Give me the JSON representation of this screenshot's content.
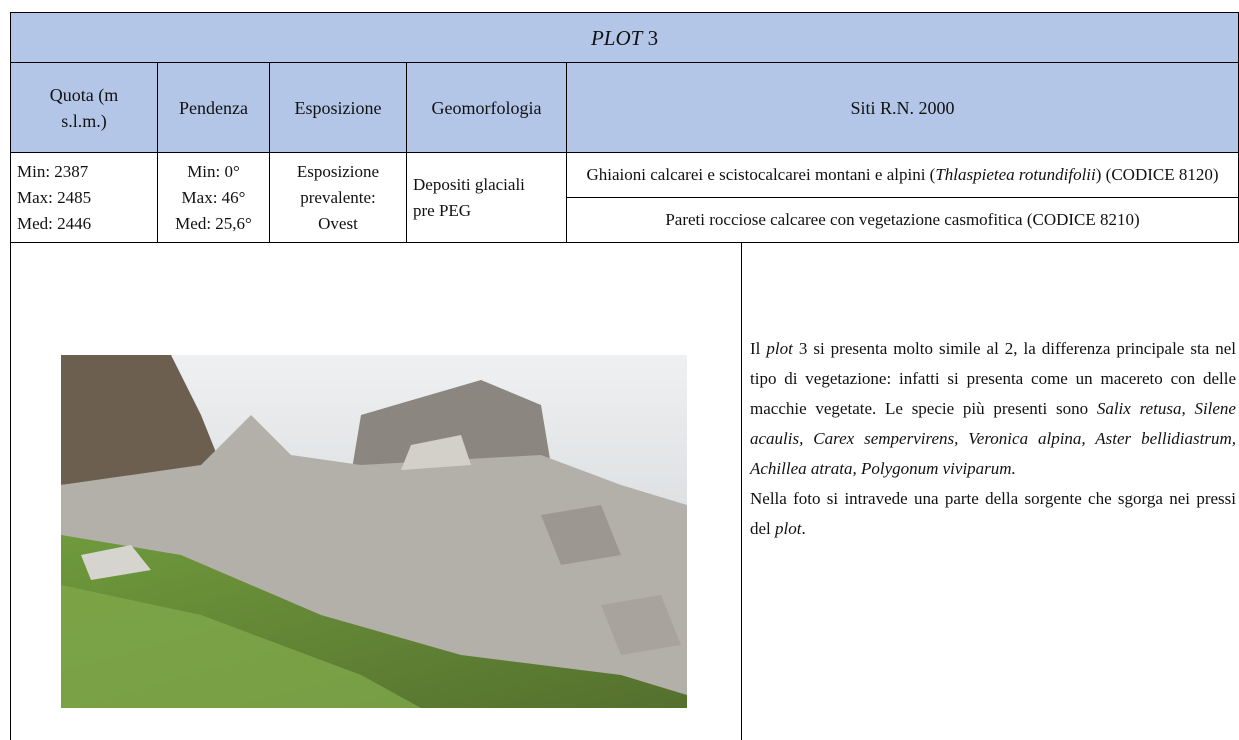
{
  "header": {
    "title": [
      "PLOT",
      " 3"
    ]
  },
  "table": {
    "columns": [
      [
        "Quota (m",
        "s.l.m.)"
      ],
      "Pendenza",
      "Esposizione",
      "Geomorfologia",
      "Siti R.N. 2000"
    ],
    "row": {
      "quota": [
        "Min: 2387",
        "Max: 2485",
        "Med: 2446"
      ],
      "pendenza": [
        "Min: 0°",
        "Max: 46°",
        "Med: 25,6°"
      ],
      "esposizione": [
        "Esposizione",
        "prevalente:",
        "Ovest"
      ],
      "geomorfologia": [
        "Depositi glaciali",
        "pre PEG"
      ],
      "siti": [
        [
          "Ghiaioni calcarei e scistocalcarei montani e alpini (",
          "Thlaspietea rotundifolii",
          ") (CODICE 8120)"
        ],
        [
          "Pareti rocciose calcaree con vegetazione casmofitica (CODICE 8210)"
        ]
      ]
    }
  },
  "description": {
    "paragraph1": [
      "Il ",
      "plot",
      " 3 si presenta molto simile al 2, la differenza principale sta nel tipo di vegetazione: infatti si presenta come un macereto con delle macchie vegetate. Le specie più presenti sono ",
      "Salix retusa, Silene acaulis, Carex sempervirens, Veronica alpina, Aster bellidiastrum, Achillea atrata, Polygonum viviparum."
    ],
    "paragraph2": [
      "Nella foto si intravede una parte della sorgente che sgorga nei pressi del ",
      "plot",
      "."
    ]
  }
}
